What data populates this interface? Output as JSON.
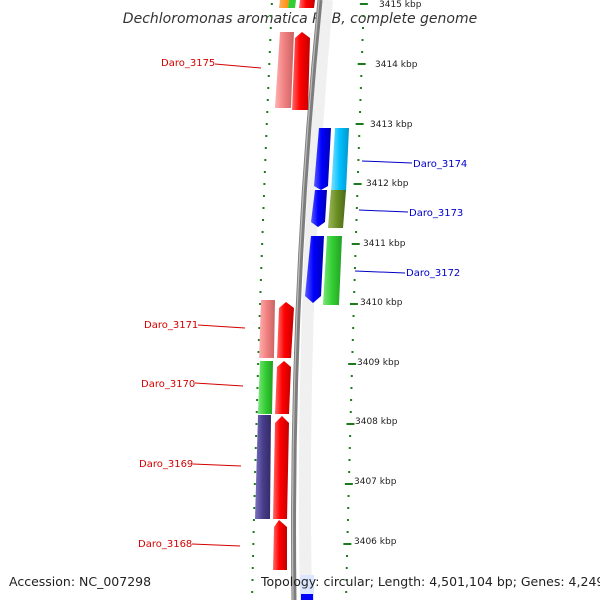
{
  "title": "Dechloromonas aromatica RCB, complete genome",
  "footer": {
    "accession": "Accession: NC_007298",
    "topology": "Topology: circular; Length: 4,501,104 bp; Genes: 4,249"
  },
  "colors": {
    "backbone": "#7d7d7d",
    "tick": "#1e7a1e",
    "left_label": "#d40000",
    "right_label": "#0000c8"
  },
  "scale_labels": [
    "3415 kbp",
    "3414 kbp",
    "3413 kbp",
    "3412 kbp",
    "3411 kbp",
    "3410 kbp",
    "3409 kbp",
    "3408 kbp",
    "3407 kbp",
    "3406 kbp"
  ],
  "gene_labels_left": [
    "Daro_3175",
    "Daro_3171",
    "Daro_3170",
    "Daro_3169",
    "Daro_3168"
  ],
  "gene_labels_right": [
    "Daro_3174",
    "Daro_3173",
    "Daro_3172"
  ],
  "features": [
    {
      "track": "right-strand",
      "color": "#ff0000"
    },
    {
      "track": "right-category",
      "color": "#f08080"
    },
    {
      "track": "left-strand",
      "color": "#0000ff"
    },
    {
      "track": "left-category",
      "color": "#00bfff"
    },
    {
      "track": "left-category",
      "color": "#6b8e23"
    },
    {
      "track": "left-category",
      "color": "#32cd32"
    },
    {
      "track": "right-category",
      "color": "#483d8b"
    }
  ]
}
